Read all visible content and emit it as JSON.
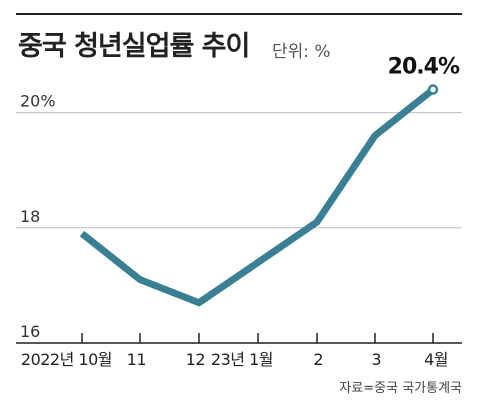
{
  "header": {
    "title": "중국 청년실업률 추이",
    "unit": "단위: %"
  },
  "footer": {
    "source": "자료=중국 국가통계국"
  },
  "colors": {
    "line": "#3a7f94",
    "grid": "#bbbbbb",
    "axis": "#222222"
  },
  "chart_data": {
    "type": "line",
    "title": "중국 청년실업률 추이",
    "unit": "단위: %",
    "categories": [
      "2022년 10월",
      "11",
      "12",
      "23년 1월",
      "2",
      "3",
      "4월"
    ],
    "values": [
      17.9,
      17.1,
      16.7,
      17.4,
      18.1,
      19.6,
      20.4
    ],
    "ylim": [
      16,
      21
    ],
    "yticks": [
      {
        "value": 16,
        "label": "16"
      },
      {
        "value": 18,
        "label": "18"
      },
      {
        "value": 20,
        "label": "20%"
      }
    ],
    "annotation": {
      "index": 6,
      "label": "20.4%"
    },
    "grid": true,
    "legend": "none"
  }
}
